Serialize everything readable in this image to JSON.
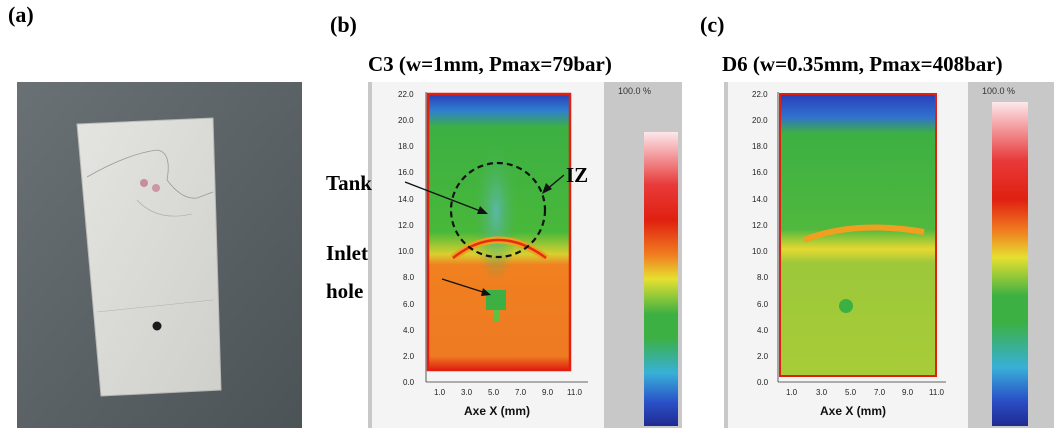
{
  "panel_a": {
    "label": "(a)"
  },
  "panel_b": {
    "label": "(b)",
    "title": "C3 (w=1mm, Pmax=79bar)",
    "annotations": {
      "tank": "Tank",
      "iz": "IZ",
      "inlet_line1": "Inlet",
      "inlet_line2": "hole"
    },
    "xlabel": "Axe X (mm)",
    "scale_top": "100.0 %"
  },
  "panel_c": {
    "label": "(c)",
    "title": "D6 (w=0.35mm, Pmax=408bar)",
    "xlabel": "Axe X (mm)",
    "scale_top": "100.0 %"
  },
  "y_ticks": [
    "22.0",
    "20.0",
    "18.0",
    "16.0",
    "14.0",
    "12.0",
    "10.0",
    "8.0",
    "6.0",
    "4.0",
    "2.0",
    "0.0"
  ],
  "x_ticks": [
    "1.0",
    "3.0",
    "5.0",
    "7.0",
    "9.0",
    "11.0"
  ],
  "colors": {
    "blue": "#2a3fb8",
    "green": "#3cb043",
    "yellow": "#e6e030",
    "orange": "#f08020",
    "red": "#e02010",
    "photo_bg": "#5b6266"
  }
}
